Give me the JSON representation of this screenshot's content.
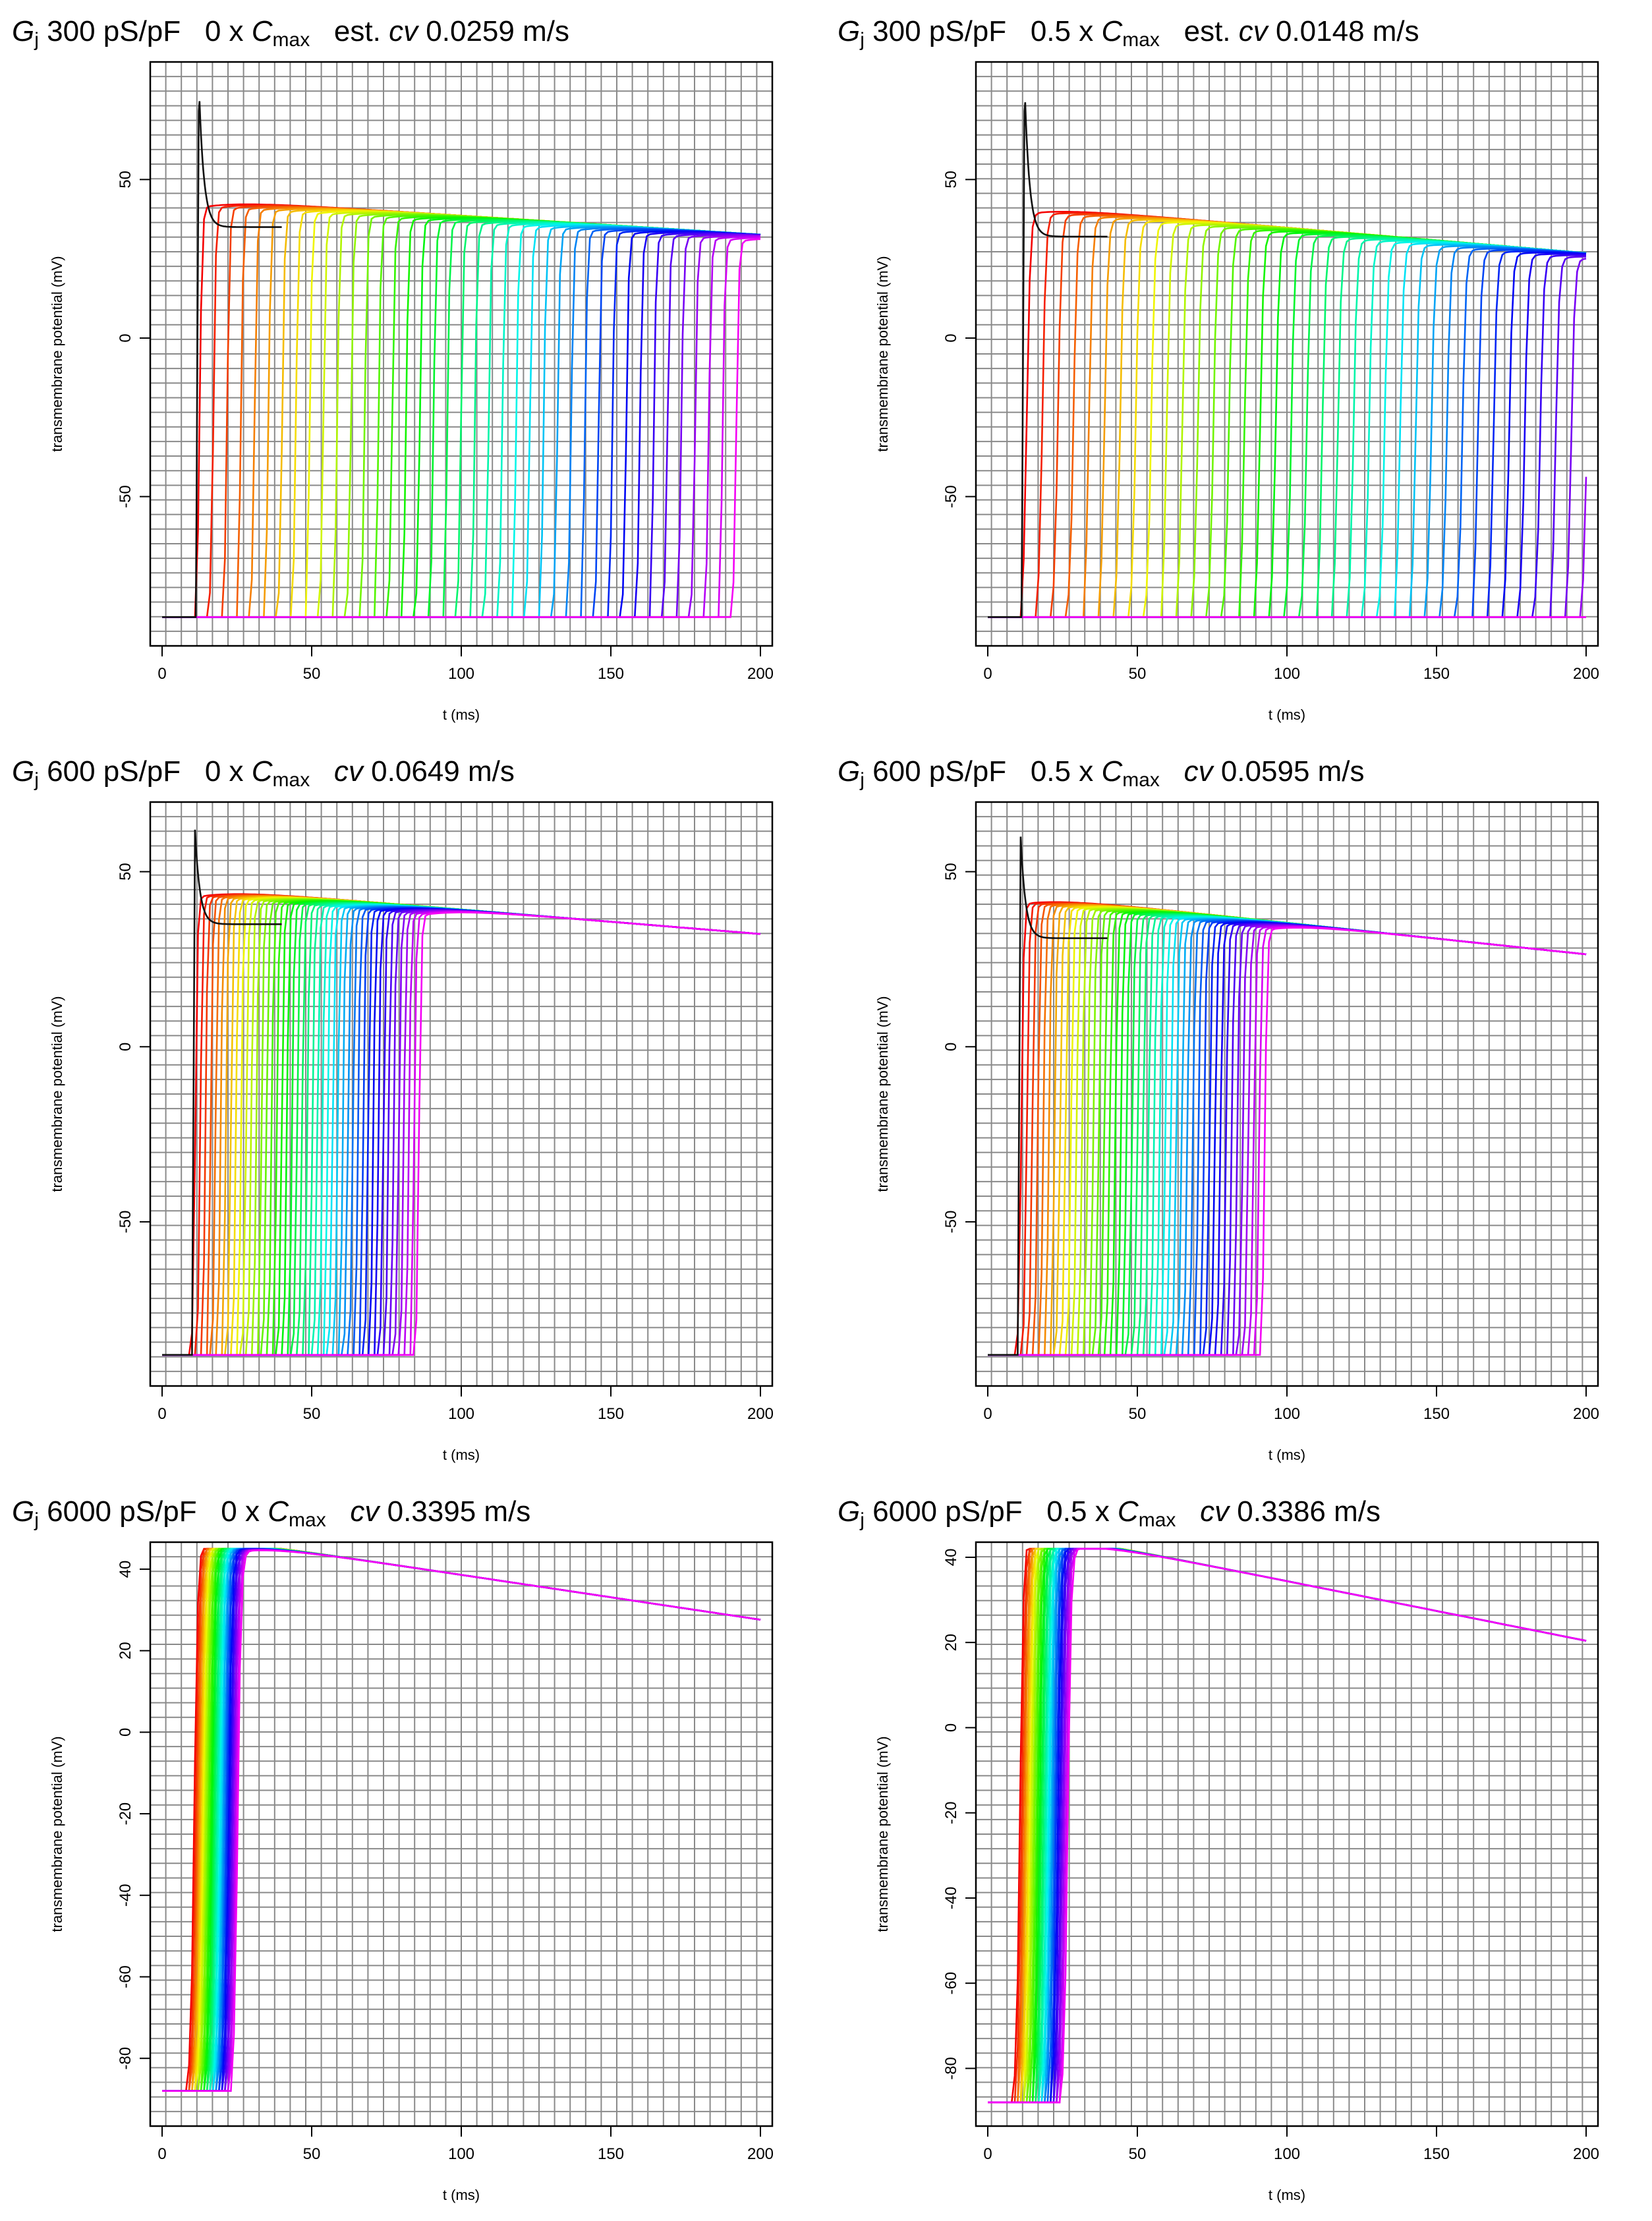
{
  "chart_data": [
    {
      "type": "line",
      "title": {
        "g": "G",
        "sub_j": "j",
        "rest": " 300 pS/pF   0 x ",
        "c": "C",
        "sub_max": "max",
        "prefix": "   est. ",
        "cv": "cv",
        "value": " 0.0259 m/s"
      },
      "xlabel": "t (ms)",
      "ylabel": "transmembrane potential (mV)",
      "xlim": [
        0,
        200
      ],
      "ylim": [
        -95,
        85
      ],
      "xticks": [
        "0",
        "50",
        "100",
        "150",
        "200"
      ],
      "yticks": [
        "-50",
        "0",
        "50"
      ],
      "series_count": 40,
      "model": {
        "rest": -88,
        "peak_spike": 80,
        "plateau_first": 35,
        "act_start": 11.3,
        "act_step": 4.6,
        "rise": 2.5,
        "plateau_level": 41,
        "plateau_drift": -0.06,
        "first_spike": true
      }
    },
    {
      "type": "line",
      "title": {
        "g": "G",
        "sub_j": "j",
        "rest": " 300 pS/pF   0.5 x ",
        "c": "C",
        "sub_max": "max",
        "prefix": "   est. ",
        "cv": "cv",
        "value": " 0.0148 m/s"
      },
      "xlabel": "t (ms)",
      "ylabel": "transmembrane potential (mV)",
      "xlim": [
        0,
        200
      ],
      "ylim": [
        -95,
        85
      ],
      "xticks": [
        "0",
        "50",
        "100",
        "150",
        "200"
      ],
      "yticks": [
        "-50",
        "0",
        "50"
      ],
      "series_count": 40,
      "model": {
        "rest": -88,
        "peak_spike": 80,
        "plateau_first": 32,
        "act_start": 11.3,
        "act_step": 5.2,
        "rise": 3.5,
        "plateau_level": 38,
        "plateau_drift": -0.08,
        "first_spike": true
      }
    },
    {
      "type": "line",
      "title": {
        "g": "G",
        "sub_j": "j",
        "rest": " 600 pS/pF   0 x ",
        "c": "C",
        "sub_max": "max",
        "prefix": "   ",
        "cv": "cv",
        "value": " 0.0649 m/s"
      },
      "xlabel": "t (ms)",
      "ylabel": "transmembrane potential (mV)",
      "xlim": [
        0,
        200
      ],
      "ylim": [
        -95,
        68
      ],
      "xticks": [
        "0",
        "50",
        "100",
        "150",
        "200"
      ],
      "yticks": [
        "-50",
        "0",
        "50"
      ],
      "series_count": 45,
      "model": {
        "rest": -88,
        "peak_spike": 62,
        "plateau_first": 35,
        "act_start": 10,
        "act_step": 1.7,
        "rise": 2.2,
        "plateau_level": 42,
        "plateau_drift": -0.07,
        "first_spike": true
      }
    },
    {
      "type": "line",
      "title": {
        "g": "G",
        "sub_j": "j",
        "rest": " 600 pS/pF   0.5 x ",
        "c": "C",
        "sub_max": "max",
        "prefix": "   ",
        "cv": "cv",
        "value": " 0.0595 m/s"
      },
      "xlabel": "t (ms)",
      "ylabel": "transmembrane potential (mV)",
      "xlim": [
        0,
        200
      ],
      "ylim": [
        -95,
        68
      ],
      "xticks": [
        "0",
        "50",
        "100",
        "150",
        "200"
      ],
      "yticks": [
        "-50",
        "0",
        "50"
      ],
      "series_count": 45,
      "model": {
        "rest": -88,
        "peak_spike": 60,
        "plateau_first": 31,
        "act_start": 10,
        "act_step": 1.85,
        "rise": 2.4,
        "plateau_level": 39,
        "plateau_drift": -0.09,
        "first_spike": true
      }
    },
    {
      "type": "line",
      "title": {
        "g": "G",
        "sub_j": "j",
        "rest": " 6000 pS/pF   0 x ",
        "c": "C",
        "sub_max": "max",
        "prefix": "   ",
        "cv": "cv",
        "value": " 0.3395 m/s"
      },
      "xlabel": "t (ms)",
      "ylabel": "transmembrane potential (mV)",
      "xlim": [
        0,
        200
      ],
      "ylim": [
        -95,
        45
      ],
      "xticks": [
        "0",
        "50",
        "100",
        "150",
        "200"
      ],
      "yticks": [
        "-80",
        "-60",
        "-40",
        "-20",
        "0",
        "20",
        "40"
      ],
      "series_count": 30,
      "model": {
        "rest": -88,
        "peak_spike": 38,
        "plateau_first": 36,
        "act_start": 9,
        "act_step": 0.5,
        "rise": 3.5,
        "plateau_level": 43,
        "plateau_drift": -0.11,
        "first_spike": false
      }
    },
    {
      "type": "line",
      "title": {
        "g": "G",
        "sub_j": "j",
        "rest": " 6000 pS/pF   0.5 x ",
        "c": "C",
        "sub_max": "max",
        "prefix": "   ",
        "cv": "cv",
        "value": " 0.3386 m/s"
      },
      "xlabel": "t (ms)",
      "ylabel": "transmembrane potential (mV)",
      "xlim": [
        0,
        200
      ],
      "ylim": [
        -92,
        42
      ],
      "xticks": [
        "0",
        "50",
        "100",
        "150",
        "200"
      ],
      "yticks": [
        "-80",
        "-60",
        "-40",
        "-20",
        "0",
        "20",
        "40"
      ],
      "series_count": 30,
      "model": {
        "rest": -88,
        "peak_spike": 36,
        "plateau_first": 34,
        "act_start": 9,
        "act_step": 0.55,
        "rise": 3.5,
        "plateau_level": 40,
        "plateau_drift": -0.14,
        "first_spike": false
      }
    }
  ]
}
